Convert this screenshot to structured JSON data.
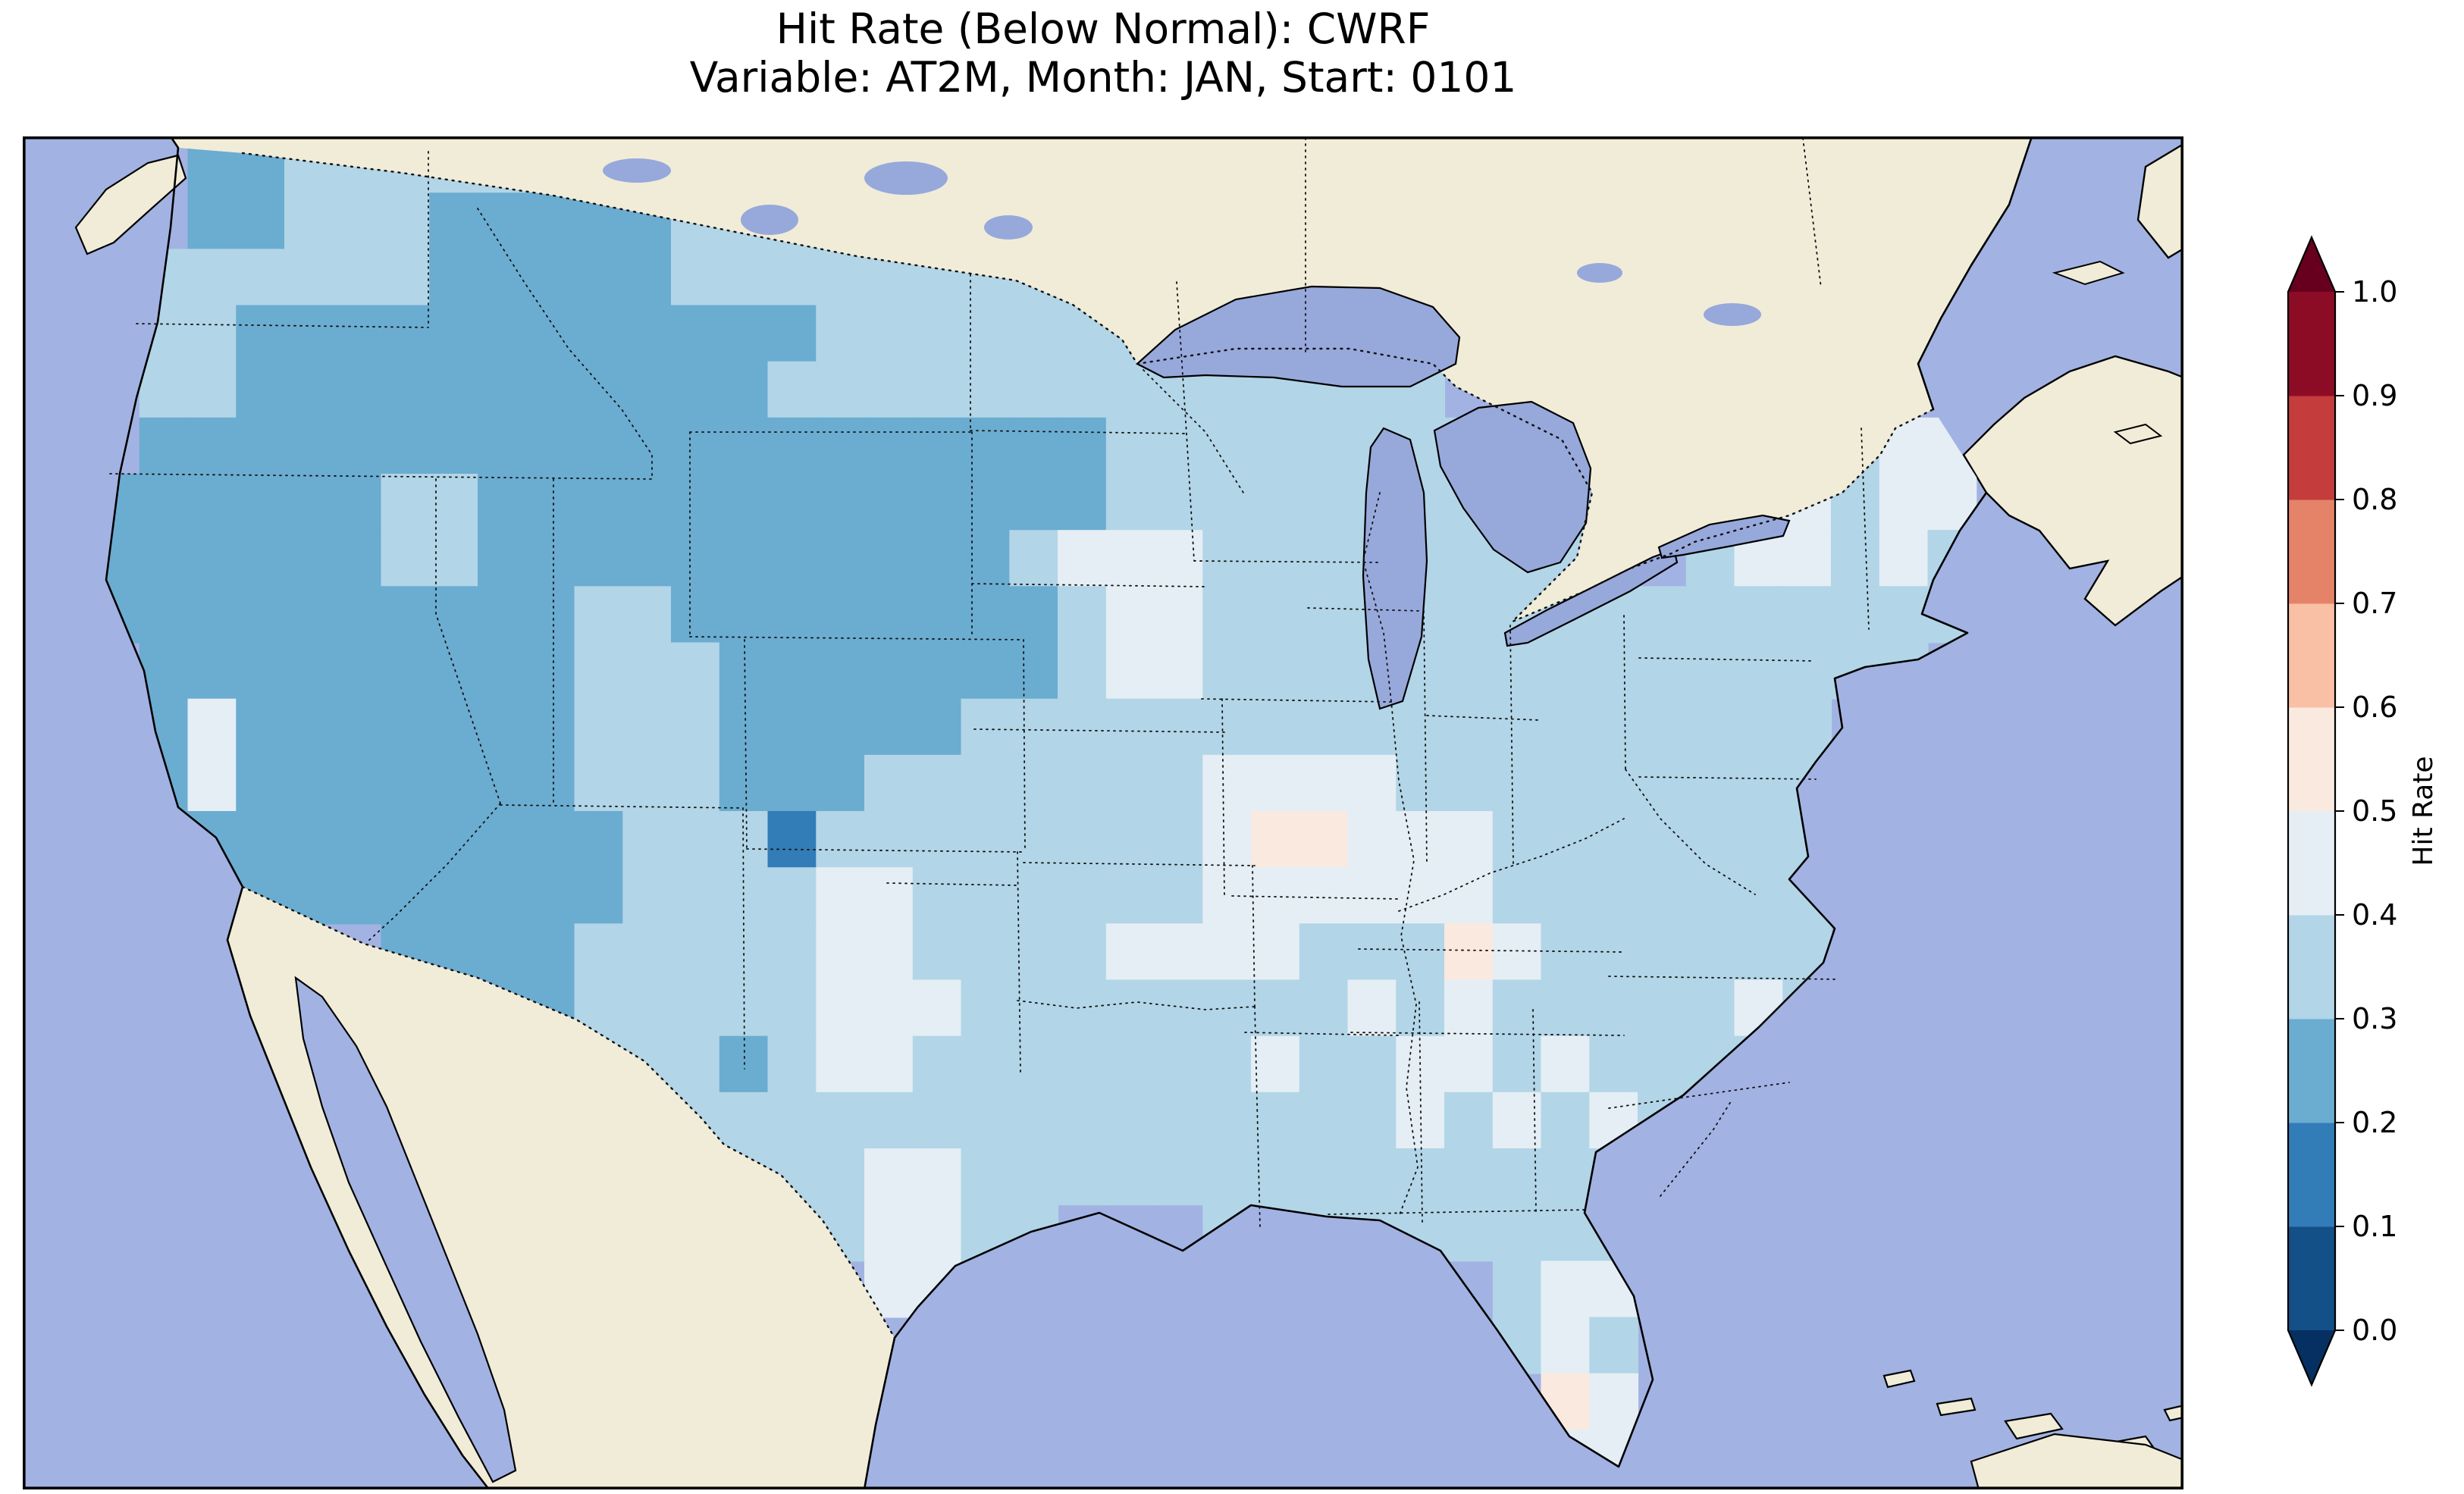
{
  "figure": {
    "title": "Hit Rate (Below Normal): CWRF",
    "subtitle": "Variable: AT2M, Month: JAN, Start: 0101"
  },
  "chart_data": {
    "type": "heatmap",
    "title": "Hit Rate (Below Normal): CWRF",
    "subtitle": "Variable: AT2M, Month: JAN, Start: 0101",
    "model": "CWRF",
    "variable": "AT2M",
    "month": "JAN",
    "start": "0101",
    "metric": "Hit Rate",
    "tercile_category": "Below Normal",
    "region": "Contiguous United States",
    "colorbar": {
      "label": "Hit Rate",
      "orientation": "vertical",
      "extend": "both",
      "tick_labels": [
        "1.0",
        "0.9",
        "0.8",
        "0.7",
        "0.6",
        "0.5",
        "0.4",
        "0.3",
        "0.2",
        "0.1",
        "0.0"
      ],
      "bin_edges": [
        0.0,
        0.1,
        0.2,
        0.3,
        0.4,
        0.5,
        0.6,
        0.7,
        0.8,
        0.9,
        1.0
      ],
      "bin_colors_low_to_high": [
        "#135087",
        "#327db8",
        "#6bacd1",
        "#b2d5e7",
        "#e4eef4",
        "#fae9df",
        "#f9c0a5",
        "#e58368",
        "#c43c3c",
        "#8d0c25"
      ],
      "under_color": "#053061",
      "over_color": "#67001f"
    },
    "value_encoding": "Each grid digit d (1-5) means hit-rate bin [d/10,(d+1)/10); digit 0 = outside CONUS data domain",
    "observed_value_range": [
      0.1,
      0.6
    ],
    "dominant_bin": "0.3-0.4",
    "notable_features": {
      "low_hit_rate_0.2_0.3": "Pacific Northwest, Idaho, Wyoming, western Colorado, most of California, Arizona, western Nebraska",
      "high_hit_rate_0.4_0.6": "Missouri / southern Illinois, middle Tennessee, central New Mexico, west and south Texas, patches in Mississippi-Alabama-Georgia, central Florida, northeast Minnesota, Maine, upstate New York",
      "isolated_0.1_0.2": "single spot near northern New Mexico / southern Colorado"
    },
    "grid": {
      "cols": 40,
      "rows": 24,
      "coverage": "approximate 40x24 cell grid over the CONUS bounding box, clipped to the U.S. outline",
      "bin_digit_rows": [
        "0022333333333333330000000000000000000000",
        "0022333222223333333000000000000000000000",
        "0333333222223333333333444330000000000000",
        "0332222222222223333333444330000000000000",
        "0332222222222233333333333333000000000000",
        "0222222222222222222223333333330000003444",
        "2222223322222222222223333333333000443440",
        "2222223322222222222344433333333003443430",
        "2222222222332222222234433333333333333330",
        "0222222222333222222234433333333333333300",
        "0242222222333222223333333333333333330000",
        "0242222222333222333333344443333333330000",
        "0222222222233313333333345544433333330000",
        "0022222222233334433333344444433333330000",
        "0000002222333334433334444333543333330000",
        "0000000222333334443333333343433333430000",
        "0000000022333234433333334334434333300000",
        "0000000000033333333333333334343434000000",
        "0000000000000333443333333333333330000000",
        "0000000000000033443300033333333300000000",
        "0000000000000000443000000000034400000000",
        "0000000000000000040000000000034300000000",
        "0000000000000000000000000000005400000000",
        "0000000000000000000000000000004400000000"
      ]
    },
    "map_colors": {
      "ocean": "#a2b2e2",
      "land": "#f0ecd8",
      "lake": "#97a8db",
      "coastline": "#000000"
    }
  }
}
